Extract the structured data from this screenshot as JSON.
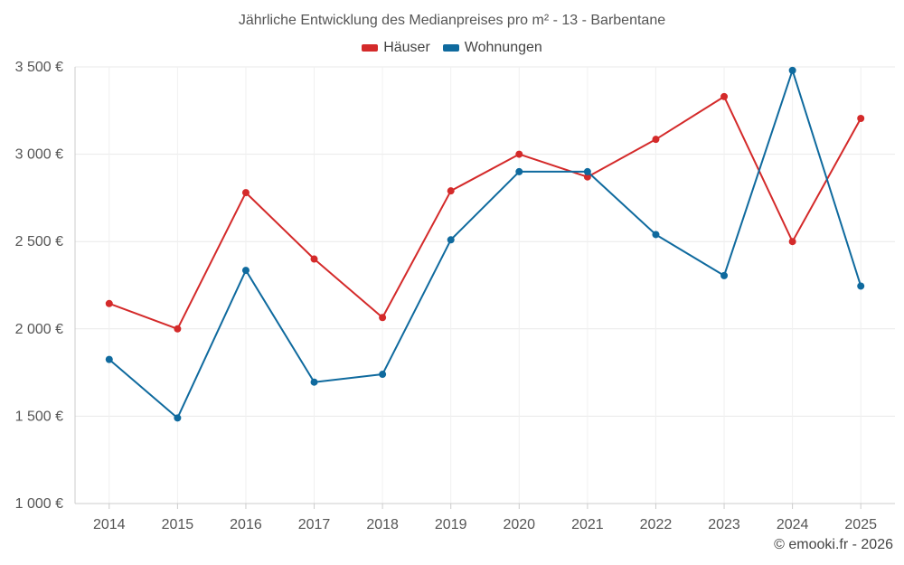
{
  "chart_data": {
    "type": "line",
    "title": "Jährliche Entwicklung des Medianpreises pro m² - 13 - Barbentane",
    "xlabel": "",
    "ylabel": "",
    "categories": [
      "2014",
      "2015",
      "2016",
      "2017",
      "2018",
      "2019",
      "2020",
      "2021",
      "2022",
      "2023",
      "2024",
      "2025"
    ],
    "ylim": [
      1000,
      3500
    ],
    "yticks": [
      1000,
      1500,
      2000,
      2500,
      3000,
      3500
    ],
    "ytick_labels": [
      "1 000 €",
      "1 500 €",
      "2 000 €",
      "2 500 €",
      "3 000 €",
      "3 500 €"
    ],
    "grid": true,
    "legend_position": "top-center",
    "series": [
      {
        "name": "Häuser",
        "color": "#d42a2a",
        "values": [
          2145,
          2000,
          2780,
          2400,
          2065,
          2790,
          3000,
          2870,
          3085,
          3330,
          2500,
          3205
        ]
      },
      {
        "name": "Wohnungen",
        "color": "#0f6a9e",
        "values": [
          1825,
          1490,
          2335,
          1695,
          1740,
          2510,
          2900,
          2900,
          2540,
          2305,
          3480,
          2245
        ]
      }
    ]
  },
  "footer": {
    "copyright": "© emooki.fr - 2026"
  }
}
